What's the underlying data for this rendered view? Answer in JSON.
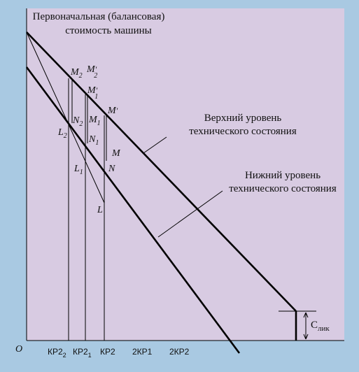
{
  "colors": {
    "background": "#a9c9e2",
    "plot_area": "#d8cbe2",
    "line": "#000000"
  },
  "title": {
    "line1": "Первоначальная (балансовая)",
    "line2": "стоимость машины"
  },
  "origin": "O",
  "upper_label": {
    "line1": "Верхний уровень",
    "line2": "технического состояния"
  },
  "lower_label": {
    "line1": "Нижний уровень",
    "line2": "технического состояния"
  },
  "salvage_label": {
    "main": "С",
    "sub": "лик"
  },
  "x_ticks": {
    "kr2_2": {
      "main": "КР2",
      "sub": "2"
    },
    "kr2_1": {
      "main": "КР2",
      "sub": "1"
    },
    "kr2": "КР2",
    "two_kp1": "2КР1",
    "two_kp2": "2КР2"
  },
  "points": {
    "M2": {
      "main": "M",
      "sub": "2"
    },
    "M2p": {
      "main": "M",
      "sub": "2",
      "prime": "′"
    },
    "M1p": {
      "main": "M",
      "sub": "1",
      "prime": "′"
    },
    "Mp": {
      "main": "M",
      "prime": "′"
    },
    "N2": {
      "main": "N",
      "sub": "2"
    },
    "M1": {
      "main": "M",
      "sub": "1"
    },
    "L2": {
      "main": "L",
      "sub": "2"
    },
    "N1": {
      "main": "N",
      "sub": "1"
    },
    "M": "M",
    "L1": {
      "main": "L",
      "sub": "1"
    },
    "N": "N",
    "L": "L"
  }
}
